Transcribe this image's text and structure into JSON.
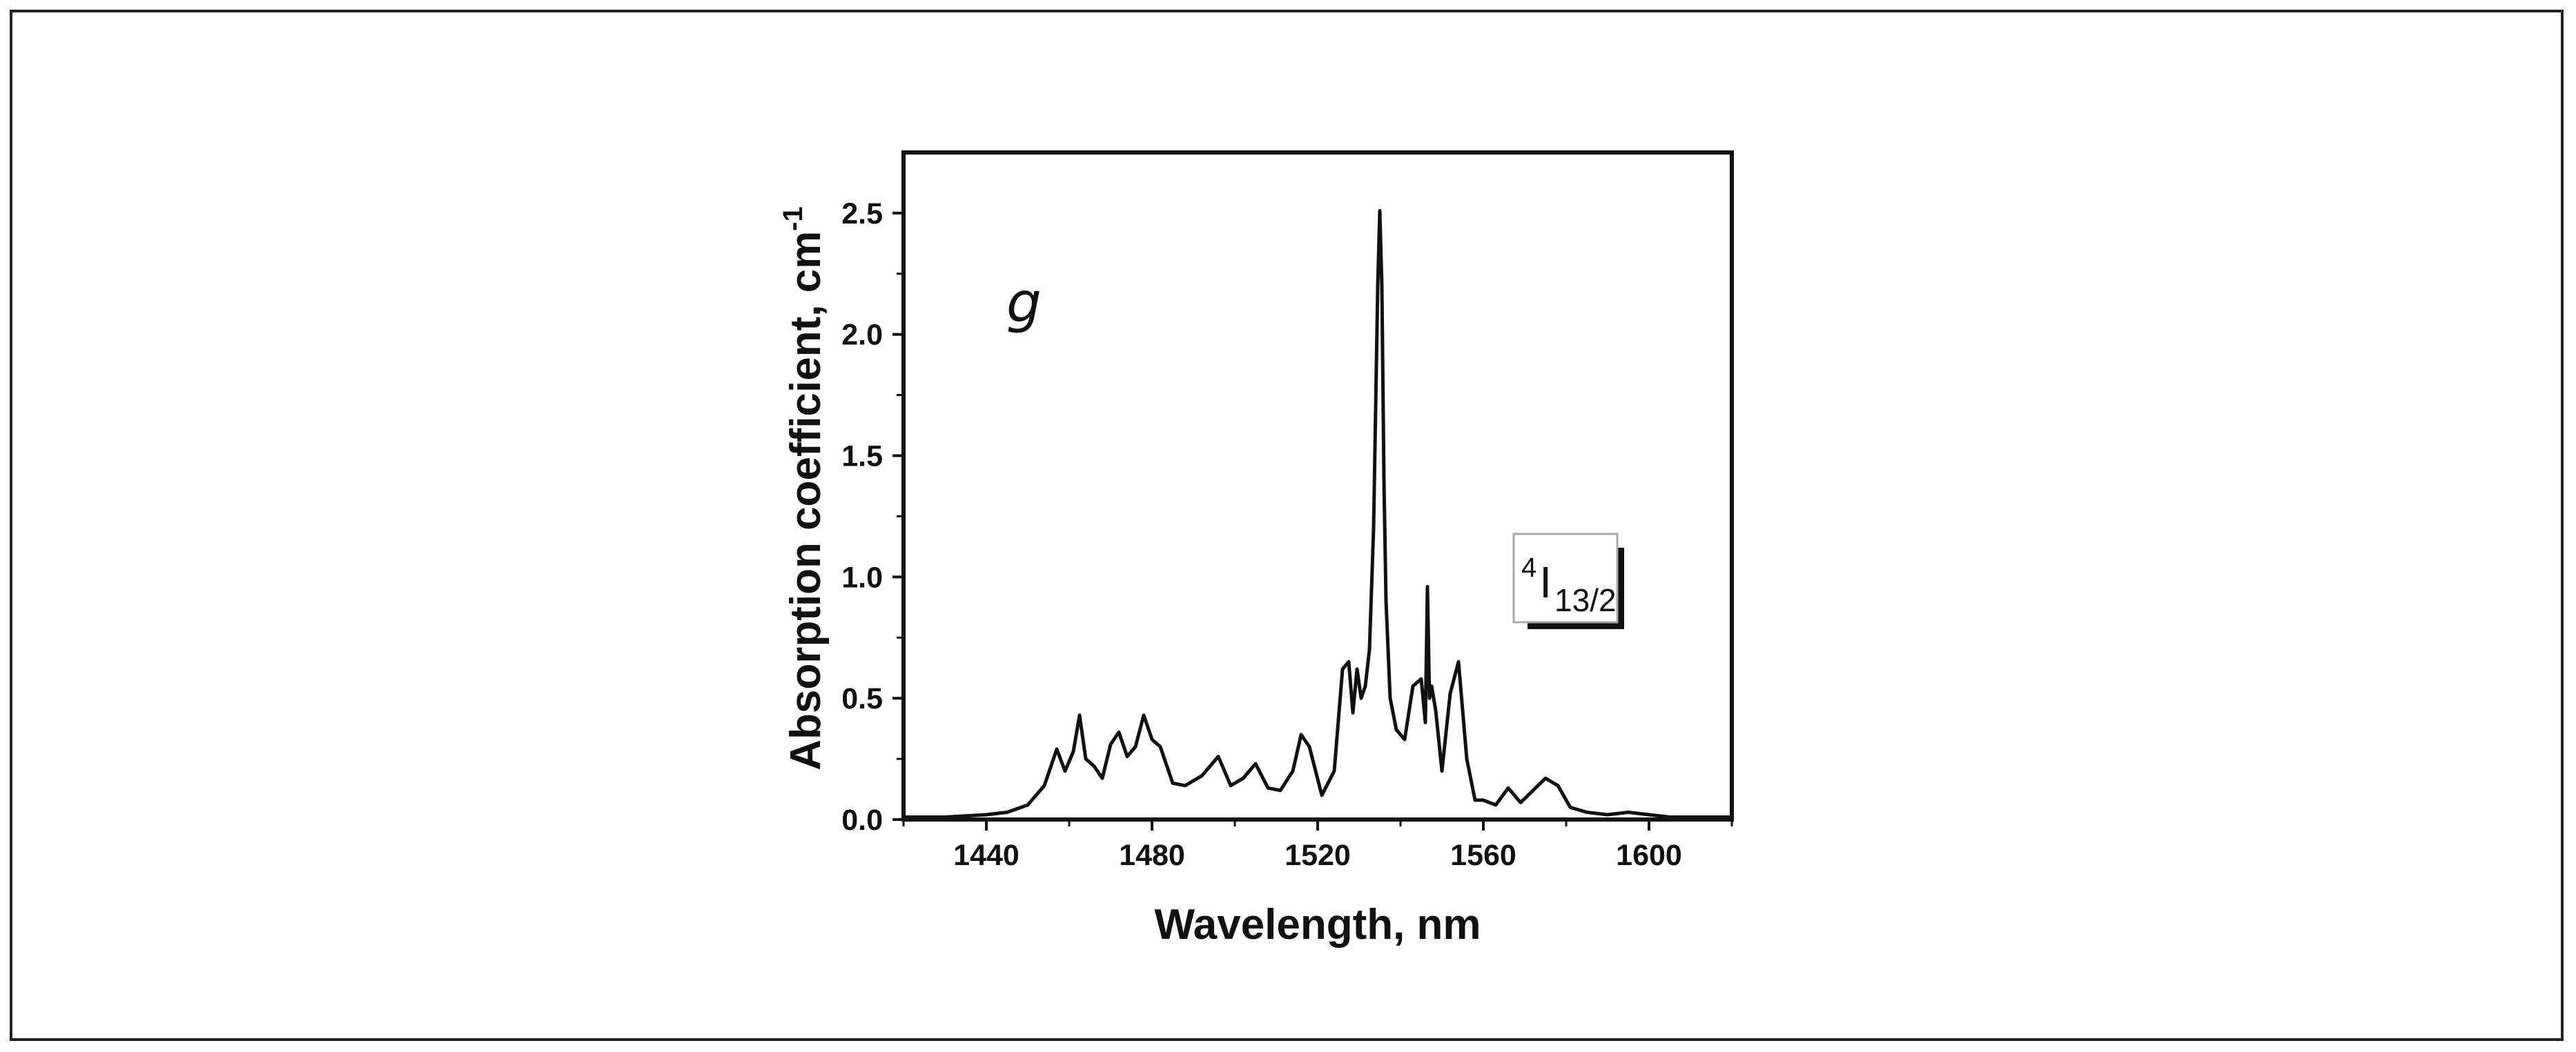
{
  "chart_data": {
    "type": "line",
    "panel_label": "g",
    "xlabel": "Wavelength, nm",
    "ylabel": "Absorption coefficient, cm",
    "ylabel_superscript": "-1",
    "xlim": [
      1420,
      1620
    ],
    "ylim": [
      0.0,
      2.75
    ],
    "x_ticks": [
      1440,
      1480,
      1520,
      1560,
      1600
    ],
    "x_tick_labels": [
      "1440",
      "1480",
      "1520",
      "1560",
      "1600"
    ],
    "y_ticks": [
      0.0,
      0.5,
      1.0,
      1.5,
      2.0,
      2.5
    ],
    "y_tick_labels": [
      "0.0",
      "0.5",
      "1.0",
      "1.5",
      "2.0",
      "2.5"
    ],
    "legend": {
      "superscript": "4",
      "main": "I",
      "subscript": "13/2"
    },
    "series": [
      {
        "name": "4I13/2 absorption",
        "color": "#111111",
        "x": [
          1420,
          1430,
          1440,
          1445,
          1450,
          1454,
          1457,
          1459,
          1461,
          1462.5,
          1464,
          1466,
          1468,
          1470,
          1472,
          1474,
          1476,
          1478,
          1480,
          1482,
          1485,
          1488,
          1492,
          1496,
          1499,
          1502,
          1505,
          1508,
          1511,
          1514,
          1516,
          1518,
          1521,
          1524,
          1526,
          1527.5,
          1528.5,
          1529.5,
          1530.5,
          1531.5,
          1532.5,
          1533.5,
          1534.5,
          1535,
          1535.5,
          1536,
          1536.5,
          1537.5,
          1539,
          1541,
          1543,
          1545,
          1546,
          1546.5,
          1547,
          1547.5,
          1548.5,
          1550,
          1552,
          1554,
          1556,
          1558,
          1560,
          1563,
          1566,
          1569,
          1572,
          1575,
          1578,
          1581,
          1585,
          1590,
          1595,
          1600,
          1605,
          1610,
          1615,
          1620
        ],
        "y": [
          0.01,
          0.01,
          0.02,
          0.03,
          0.06,
          0.14,
          0.29,
          0.2,
          0.28,
          0.43,
          0.25,
          0.22,
          0.17,
          0.31,
          0.36,
          0.26,
          0.3,
          0.43,
          0.33,
          0.3,
          0.15,
          0.14,
          0.18,
          0.26,
          0.14,
          0.17,
          0.23,
          0.13,
          0.12,
          0.2,
          0.35,
          0.3,
          0.1,
          0.2,
          0.62,
          0.65,
          0.44,
          0.62,
          0.5,
          0.55,
          0.7,
          1.2,
          2.2,
          2.51,
          2.2,
          1.4,
          0.9,
          0.5,
          0.37,
          0.33,
          0.55,
          0.58,
          0.4,
          0.96,
          0.5,
          0.55,
          0.45,
          0.2,
          0.52,
          0.65,
          0.25,
          0.08,
          0.08,
          0.06,
          0.13,
          0.07,
          0.12,
          0.17,
          0.14,
          0.05,
          0.03,
          0.02,
          0.03,
          0.02,
          0.01,
          0.01,
          0.01,
          0.01
        ]
      }
    ]
  }
}
